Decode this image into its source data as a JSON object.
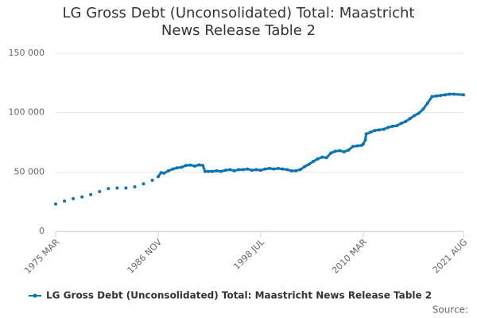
{
  "chart_data": {
    "type": "line",
    "title": "LG Gross Debt (Unconsolidated) Total: Maastricht News Release Table 2",
    "source_label": "Source:",
    "x": [
      "1975 MAR",
      "1975 SEP",
      "1976 MAR",
      "1976 SEP",
      "1977 MAR",
      "1977 SEP",
      "1978 MAR",
      "1978 SEP",
      "1979 MAR",
      "1979 SEP",
      "1980 MAR",
      "1980 SEP",
      "1981 MAR",
      "1981 SEP",
      "1982 MAR",
      "1982 SEP",
      "1983 MAR",
      "1983 SEP",
      "1984 MAR",
      "1984 SEP",
      "1985 MAR",
      "1985 SEP",
      "1986 MAR",
      "1986 JUL",
      "1986 NOV",
      "1987 MAR",
      "1987 JUL",
      "1988 JAN",
      "1988 JUL",
      "1989 JAN",
      "1989 JUL",
      "1990 JAN",
      "1990 JUL",
      "1991 JAN",
      "1991 JUL",
      "1991 DEC",
      "1992 MAR",
      "1992 JUL",
      "1993 JAN",
      "1993 JUL",
      "1994 JAN",
      "1994 JUL",
      "1995 JAN",
      "1995 JUL",
      "1996 JAN",
      "1996 JUL",
      "1997 JAN",
      "1997 JUL",
      "1998 JAN",
      "1998 JUL",
      "1999 JAN",
      "1999 JUL",
      "2000 JAN",
      "2000 JUL",
      "2001 JAN",
      "2001 JUL",
      "2002 JAN",
      "2002 JUL",
      "2003 JAN",
      "2003 JUL",
      "2004 JAN",
      "2004 JUL",
      "2005 JAN",
      "2005 JUL",
      "2006 JAN",
      "2006 JUL",
      "2007 JAN",
      "2007 JUL",
      "2008 JAN",
      "2008 JUL",
      "2009 JAN",
      "2009 JUL",
      "2010 JAN",
      "2010 MAR",
      "2010 JUN",
      "2010 JUL",
      "2011 JAN",
      "2011 JUL",
      "2012 JAN",
      "2012 JUL",
      "2013 JAN",
      "2013 JUL",
      "2014 JAN",
      "2014 JUL",
      "2015 JAN",
      "2015 JUL",
      "2016 JAN",
      "2016 JUL",
      "2017 JAN",
      "2017 JUL",
      "2018 JAN",
      "2018 JUL",
      "2019 JAN",
      "2019 JUL",
      "2020 JAN",
      "2020 JUL",
      "2021 AUG"
    ],
    "series": [
      {
        "name": "LG Gross Debt (Unconsolidated) Total: Maastricht News Release Table 2",
        "color": "#0a74b7",
        "values": [
          23000,
          null,
          25500,
          null,
          27500,
          null,
          29000,
          null,
          31000,
          null,
          33500,
          null,
          36000,
          null,
          36500,
          null,
          36500,
          null,
          37500,
          null,
          40000,
          null,
          43000,
          null,
          46000,
          49500,
          49000,
          51000,
          52500,
          53500,
          54000,
          55500,
          55800,
          55000,
          56000,
          55500,
          50500,
          50500,
          50500,
          51000,
          50500,
          51500,
          52000,
          51000,
          52000,
          52000,
          52500,
          51500,
          52000,
          51500,
          52500,
          53000,
          52500,
          53000,
          52500,
          52000,
          51000,
          51000,
          52000,
          54500,
          56500,
          59000,
          61000,
          62500,
          62000,
          66000,
          67500,
          68000,
          67000,
          68500,
          71500,
          72000,
          72500,
          73500,
          77000,
          82000,
          83500,
          85000,
          85500,
          86000,
          87500,
          88500,
          89000,
          91000,
          92500,
          95000,
          97500,
          99500,
          103000,
          108000,
          113500,
          114000,
          114500,
          115000,
          115500,
          115500,
          115000
        ]
      }
    ],
    "xlim": [
      "1975 MAR",
      "2021 AUG"
    ],
    "xticks": [
      "1975 MAR",
      "1986 NOV",
      "1998 JUL",
      "2010 MAR",
      "2021 AUG"
    ],
    "ylim": [
      0,
      150000
    ],
    "yticks": [
      0,
      {
        "value": 50000,
        "label": "50 000"
      },
      {
        "value": 100000,
        "label": "100 000"
      },
      {
        "value": 150000,
        "label": "150 000"
      }
    ],
    "grid": true,
    "legend": "bottom"
  }
}
